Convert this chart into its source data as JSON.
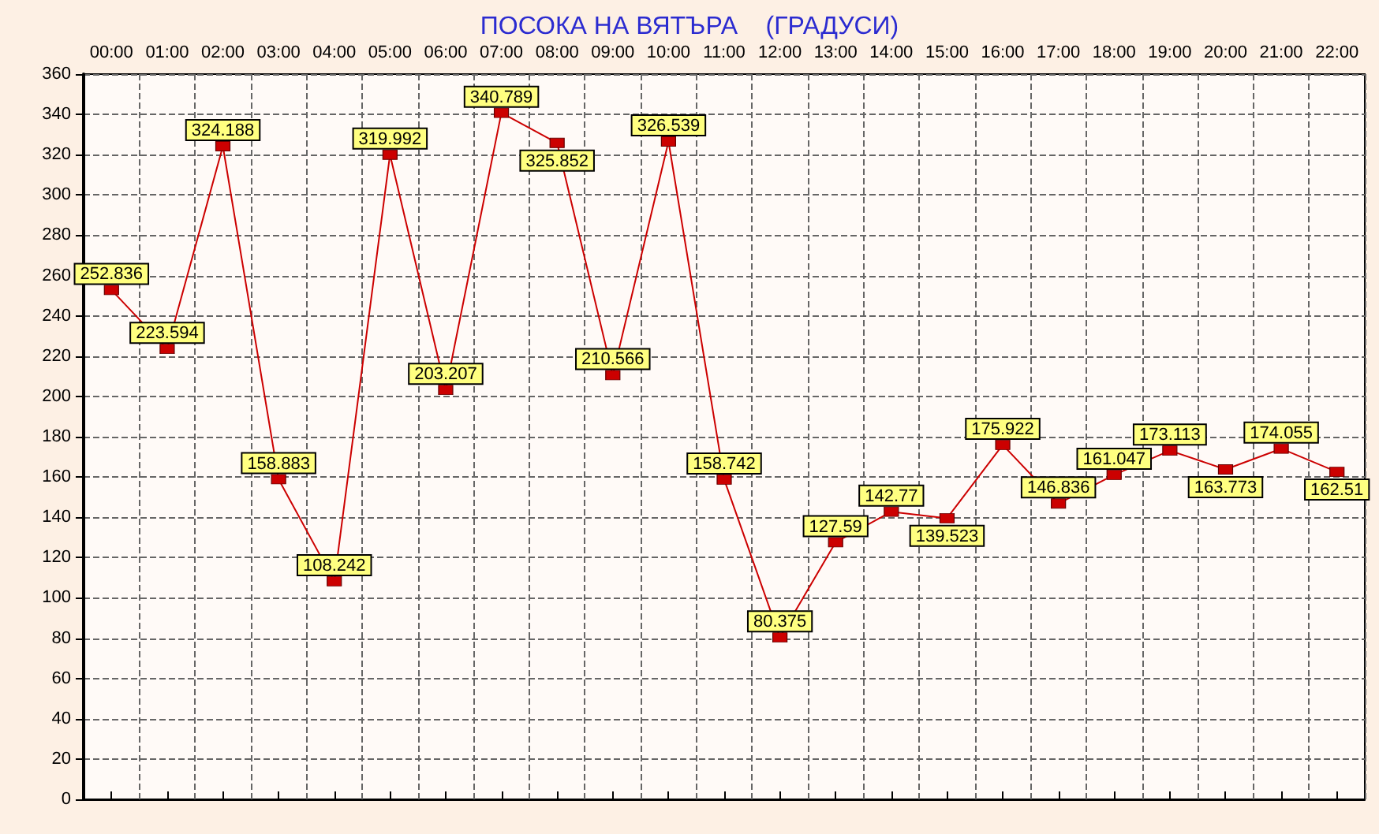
{
  "chart_data": {
    "type": "line",
    "title": "ПОСОКА НА ВЯТЪРА    (ГРАДУСИ)",
    "categories": [
      "00:00",
      "01:00",
      "02:00",
      "03:00",
      "04:00",
      "05:00",
      "06:00",
      "07:00",
      "08:00",
      "09:00",
      "10:00",
      "11:00",
      "12:00",
      "13:00",
      "14:00",
      "15:00",
      "16:00",
      "17:00",
      "18:00",
      "19:00",
      "20:00",
      "21:00",
      "22:00"
    ],
    "series": [
      {
        "color": "#cc0000",
        "values": [
          252.836,
          223.594,
          324.188,
          158.883,
          108.242,
          319.992,
          203.207,
          340.789,
          325.852,
          210.566,
          326.539,
          158.742,
          80.375,
          127.59,
          142.77,
          139.523,
          175.922,
          146.836,
          161.047,
          173.113,
          163.773,
          174.055,
          162.51
        ]
      }
    ],
    "ylim": [
      0,
      360
    ],
    "yticks": [
      0,
      20,
      40,
      60,
      80,
      100,
      120,
      140,
      160,
      180,
      200,
      220,
      240,
      260,
      280,
      300,
      320,
      340,
      360
    ],
    "grid": true,
    "marker": "square",
    "line_style": "solid",
    "data_labels": true
  }
}
